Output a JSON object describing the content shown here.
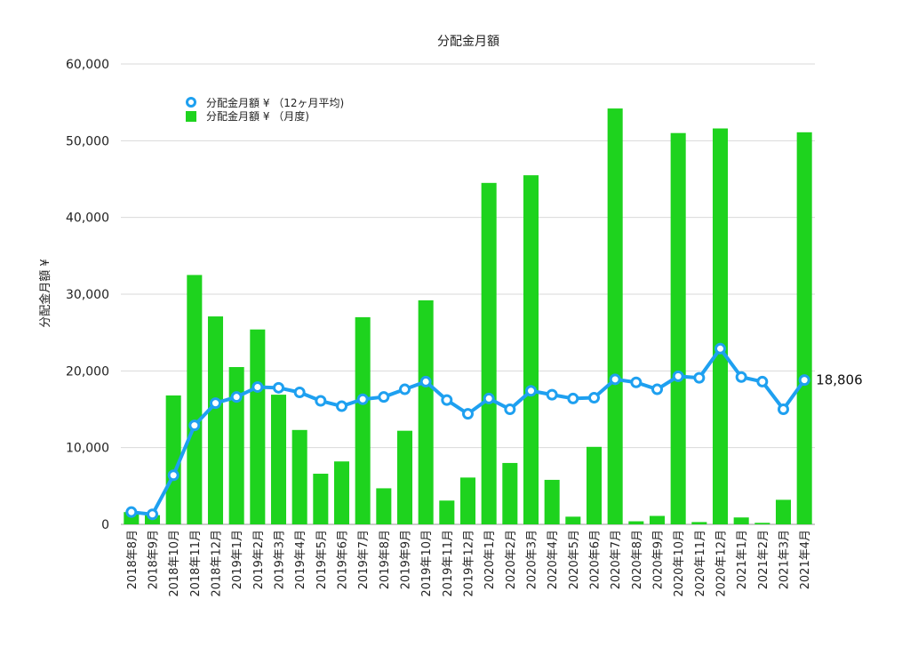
{
  "chart_data": {
    "type": "bar",
    "title": "分配金月額",
    "xlabel": "",
    "ylabel": "分配金月額 ¥",
    "ylim": [
      0,
      60000
    ],
    "yticks": [
      "0",
      "10,000",
      "20,000",
      "30,000",
      "40,000",
      "50,000",
      "60,000"
    ],
    "grid": true,
    "legend_position": "top-left",
    "categories": [
      "2018年8月",
      "2018年9月",
      "2018年10月",
      "2018年11月",
      "2018年12月",
      "2019年1月",
      "2019年2月",
      "2019年3月",
      "2019年4月",
      "2019年5月",
      "2019年6月",
      "2019年7月",
      "2019年8月",
      "2019年9月",
      "2019年10月",
      "2019年11月",
      "2019年12月",
      "2020年1月",
      "2020年2月",
      "2020年3月",
      "2020年4月",
      "2020年5月",
      "2020年6月",
      "2020年7月",
      "2020年8月",
      "2020年9月",
      "2020年10月",
      "2020年11月",
      "2020年12月",
      "2021年1月",
      "2021年2月",
      "2021年3月",
      "2021年4月"
    ],
    "series": [
      {
        "name": "分配金月額 ¥ （月度)",
        "type": "bar",
        "color": "#1ed31e",
        "values": [
          1600,
          1200,
          16800,
          32500,
          27100,
          20500,
          25400,
          16900,
          12300,
          6600,
          8200,
          27000,
          4700,
          12200,
          29200,
          3100,
          6100,
          44500,
          8000,
          45500,
          5800,
          1000,
          10100,
          54200,
          400,
          1100,
          51000,
          300,
          51600,
          900,
          200,
          3200,
          51100
        ]
      },
      {
        "name": "分配金月額 ¥ （12ヶ月平均)",
        "type": "line",
        "color": "#1ea0f0",
        "values": [
          1600,
          1300,
          6400,
          12900,
          15800,
          16600,
          17900,
          17800,
          17200,
          16100,
          15400,
          16300,
          16600,
          17600,
          18600,
          16200,
          14400,
          16400,
          15000,
          17400,
          16900,
          16400,
          16500,
          18900,
          18500,
          17600,
          19300,
          19100,
          22900,
          19200,
          18600,
          15000,
          18806
        ]
      }
    ],
    "end_label": "18,806"
  }
}
